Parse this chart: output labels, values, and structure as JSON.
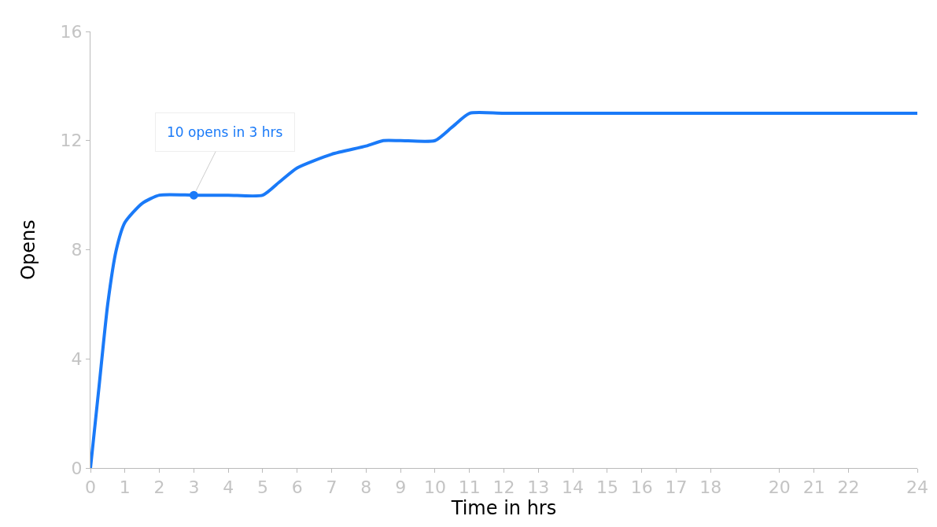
{
  "chart_data": {
    "type": "line",
    "xlabel": "Time in hrs",
    "ylabel": "Opens",
    "x": [
      0,
      0.25,
      0.5,
      0.75,
      1,
      1.5,
      2,
      3,
      4,
      5,
      5.5,
      6,
      7,
      8,
      8.5,
      9,
      10,
      10.5,
      11,
      12,
      16,
      20,
      24
    ],
    "series": [
      {
        "color": "#1a7af8",
        "values": [
          0,
          3,
          6,
          8,
          9,
          9.7,
          10,
          10,
          10,
          10,
          10.5,
          11,
          11.5,
          11.8,
          12,
          12,
          12,
          12.5,
          13,
          13,
          13,
          13,
          13
        ]
      }
    ],
    "xlim": [
      0,
      24
    ],
    "xticks": [
      0,
      1,
      2,
      3,
      4,
      5,
      6,
      7,
      8,
      9,
      10,
      11,
      12,
      13,
      14,
      15,
      16,
      17,
      18,
      20,
      21,
      22,
      24
    ],
    "ylim": [
      0,
      16
    ],
    "yticks": [
      0,
      4,
      8,
      12,
      16
    ],
    "annotations": [
      {
        "text": "10 opens in 3 hrs",
        "x": 3,
        "y": 10
      }
    ],
    "grid": false,
    "marker": "none",
    "line_style": "solid"
  }
}
